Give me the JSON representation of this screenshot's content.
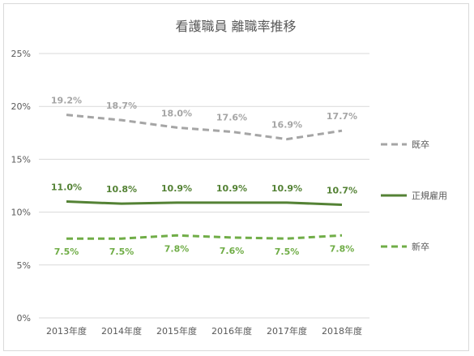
{
  "chart_data": {
    "type": "line",
    "title": "看護職員 離職率推移",
    "categories": [
      "2013年度",
      "2014年度",
      "2015年度",
      "2016年度",
      "2017年度",
      "2018年度"
    ],
    "ylim": [
      0,
      25
    ],
    "yticks": [
      "0%",
      "5%",
      "10%",
      "15%",
      "20%",
      "25%"
    ],
    "ytick_values": [
      0,
      5,
      10,
      15,
      20,
      25
    ],
    "grid": true,
    "legend_position": "right",
    "series": [
      {
        "name": "既卒",
        "values": [
          19.2,
          18.7,
          18.0,
          17.6,
          16.9,
          17.7
        ],
        "labels": [
          "19.2%",
          "18.7%",
          "18.0%",
          "17.6%",
          "16.9%",
          "17.7%"
        ],
        "color": "#a5a5a5",
        "line_style": "dashed",
        "label_position": "above"
      },
      {
        "name": "正規雇用",
        "values": [
          11.0,
          10.8,
          10.9,
          10.9,
          10.9,
          10.7
        ],
        "labels": [
          "11.0%",
          "10.8%",
          "10.9%",
          "10.9%",
          "10.9%",
          "10.7%"
        ],
        "color": "#548235",
        "line_style": "solid",
        "label_position": "above"
      },
      {
        "name": "新卒",
        "values": [
          7.5,
          7.5,
          7.8,
          7.6,
          7.5,
          7.8
        ],
        "labels": [
          "7.5%",
          "7.5%",
          "7.8%",
          "7.6%",
          "7.5%",
          "7.8%"
        ],
        "color": "#70ad47",
        "line_style": "dashed",
        "label_position": "below"
      }
    ]
  }
}
